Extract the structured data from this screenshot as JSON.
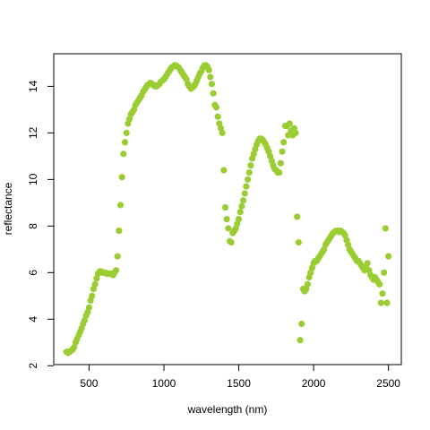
{
  "chart_data": {
    "type": "scatter",
    "x_label": "wavelength (nm)",
    "y_label": "reflectance",
    "color": "#9acd32",
    "xlim": [
      264,
      2586
    ],
    "ylim": [
      2.05,
      15.4
    ],
    "xticks": [
      500,
      1000,
      1500,
      2000,
      2500
    ],
    "yticks": [
      2,
      4,
      6,
      8,
      10,
      12,
      14
    ],
    "x": [
      350,
      360,
      370,
      380,
      390,
      400,
      410,
      420,
      430,
      440,
      450,
      460,
      470,
      480,
      490,
      500,
      510,
      520,
      530,
      540,
      550,
      560,
      570,
      580,
      590,
      600,
      610,
      620,
      630,
      640,
      650,
      660,
      670,
      680,
      690,
      700,
      710,
      720,
      730,
      740,
      750,
      760,
      770,
      780,
      790,
      800,
      810,
      820,
      830,
      840,
      850,
      860,
      870,
      880,
      890,
      900,
      910,
      920,
      930,
      940,
      950,
      960,
      970,
      980,
      990,
      1000,
      1010,
      1020,
      1030,
      1040,
      1050,
      1060,
      1070,
      1080,
      1090,
      1100,
      1110,
      1120,
      1130,
      1140,
      1150,
      1160,
      1170,
      1180,
      1190,
      1200,
      1210,
      1220,
      1230,
      1240,
      1250,
      1260,
      1270,
      1280,
      1290,
      1300,
      1310,
      1320,
      1330,
      1340,
      1350,
      1360,
      1370,
      1380,
      1390,
      1400,
      1410,
      1420,
      1430,
      1440,
      1450,
      1460,
      1470,
      1480,
      1490,
      1500,
      1510,
      1520,
      1530,
      1540,
      1550,
      1560,
      1570,
      1580,
      1590,
      1600,
      1610,
      1620,
      1630,
      1640,
      1650,
      1660,
      1670,
      1680,
      1690,
      1700,
      1710,
      1720,
      1730,
      1740,
      1750,
      1760,
      1770,
      1780,
      1790,
      1800,
      1810,
      1820,
      1830,
      1840,
      1850,
      1860,
      1870,
      1880,
      1890,
      1900,
      1910,
      1920,
      1930,
      1940,
      1950,
      1960,
      1970,
      1980,
      1990,
      2000,
      2010,
      2020,
      2030,
      2040,
      2050,
      2060,
      2070,
      2080,
      2090,
      2100,
      2110,
      2120,
      2130,
      2140,
      2150,
      2160,
      2170,
      2180,
      2190,
      2200,
      2210,
      2220,
      2230,
      2240,
      2250,
      2260,
      2270,
      2280,
      2290,
      2300,
      2310,
      2320,
      2330,
      2340,
      2350,
      2360,
      2370,
      2380,
      2390,
      2400,
      2410,
      2420,
      2430,
      2440,
      2450,
      2460,
      2470,
      2480,
      2490,
      2500
    ],
    "values": [
      2.6,
      2.55,
      2.6,
      2.65,
      2.7,
      2.8,
      3.0,
      3.15,
      3.3,
      3.45,
      3.6,
      3.8,
      3.95,
      4.15,
      4.3,
      4.5,
      4.8,
      5.0,
      5.3,
      5.5,
      5.75,
      5.95,
      6.05,
      6.05,
      6.0,
      6.0,
      6.0,
      5.95,
      5.95,
      5.95,
      5.95,
      5.9,
      6.0,
      6.1,
      6.7,
      7.8,
      8.9,
      10.1,
      11.1,
      11.6,
      12.0,
      12.4,
      12.6,
      12.8,
      12.9,
      13.0,
      13.2,
      13.3,
      13.4,
      13.5,
      13.6,
      13.75,
      13.85,
      13.95,
      14.05,
      14.1,
      14.15,
      14.1,
      14.05,
      14.0,
      14.0,
      14.05,
      14.1,
      14.2,
      14.25,
      14.3,
      14.4,
      14.5,
      14.6,
      14.7,
      14.8,
      14.85,
      14.9,
      14.9,
      14.85,
      14.8,
      14.7,
      14.6,
      14.5,
      14.4,
      14.3,
      14.1,
      14.0,
      13.9,
      13.95,
      14.0,
      14.1,
      14.25,
      14.4,
      14.55,
      14.65,
      14.8,
      14.9,
      14.9,
      14.85,
      14.7,
      14.4,
      14.1,
      13.7,
      13.2,
      13.1,
      12.7,
      12.4,
      12.2,
      12.0,
      10.4,
      8.8,
      8.3,
      7.9,
      7.35,
      7.3,
      7.7,
      7.8,
      7.9,
      8.1,
      8.3,
      8.6,
      8.85,
      9.1,
      9.4,
      9.7,
      10.0,
      10.3,
      10.6,
      10.9,
      11.1,
      11.3,
      11.5,
      11.65,
      11.75,
      11.75,
      11.7,
      11.6,
      11.5,
      11.35,
      11.2,
      11.0,
      10.8,
      10.6,
      10.45,
      10.4,
      10.3,
      10.3,
      10.7,
      11.2,
      11.6,
      12.3,
      12.3,
      11.9,
      12.4,
      12.1,
      11.9,
      12.2,
      12.0,
      8.4,
      7.3,
      3.1,
      3.8,
      5.3,
      5.2,
      5.3,
      5.5,
      5.8,
      6.0,
      6.2,
      6.4,
      6.5,
      6.5,
      6.6,
      6.7,
      6.8,
      6.9,
      7.0,
      7.2,
      7.3,
      7.4,
      7.5,
      7.6,
      7.7,
      7.75,
      7.8,
      7.8,
      7.75,
      7.8,
      7.75,
      7.7,
      7.6,
      7.4,
      7.2,
      7.0,
      6.9,
      6.8,
      6.7,
      6.6,
      6.5,
      6.5,
      6.4,
      6.3,
      6.2,
      6.1,
      6.2,
      6.4,
      6.1,
      5.9,
      5.8,
      5.7,
      5.8,
      5.7,
      5.6,
      5.5,
      4.7,
      5.1,
      6.0,
      7.9,
      4.7,
      6.7
    ]
  }
}
